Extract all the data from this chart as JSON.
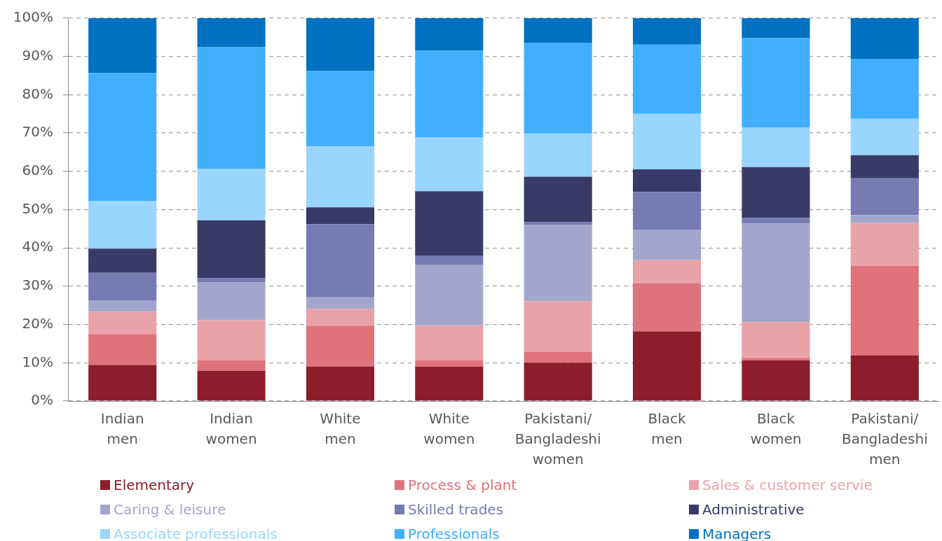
{
  "chart_data": {
    "type": "bar",
    "stacked": true,
    "grid": "y",
    "legend": "bottom",
    "categories": [
      "Indian men",
      "Indian women",
      "White men",
      "White women",
      "Pakistani/Bangladeshi women",
      "Black men",
      "Black women",
      "Pakistani/Bangladeshi men"
    ],
    "ylim": [
      0,
      100
    ],
    "yticks": [
      {
        "value": 0,
        "label": "0%"
      },
      {
        "value": 10,
        "label": "10%"
      },
      {
        "value": 20,
        "label": "20%"
      },
      {
        "value": 30,
        "label": "30%"
      },
      {
        "value": 40,
        "label": "40%"
      },
      {
        "value": 50,
        "label": "50%"
      },
      {
        "value": 60,
        "label": "60%"
      },
      {
        "value": 70,
        "label": "70%"
      },
      {
        "value": 80,
        "label": "80%"
      },
      {
        "value": 90,
        "label": "90%"
      },
      {
        "value": 100,
        "label": "100%"
      }
    ],
    "series": [
      {
        "name": "Elementary",
        "color": "#8b1e2a",
        "values": [
          9.4,
          7.9,
          9.0,
          9.0,
          10.0,
          18.2,
          10.6,
          11.9
        ]
      },
      {
        "name": "Process & plant",
        "color": "#de737c",
        "values": [
          8.1,
          2.7,
          10.7,
          1.6,
          2.8,
          12.6,
          0.7,
          23.4
        ]
      },
      {
        "name": "Sales & customer servie",
        "color": "#e8a3a8",
        "values": [
          5.8,
          10.5,
          4.4,
          9.1,
          13.3,
          6.0,
          9.3,
          11.2
        ]
      },
      {
        "name": "Caring & leisure",
        "color": "#a3a6cc",
        "values": [
          2.9,
          10.0,
          3.0,
          15.8,
          19.9,
          8.0,
          25.8,
          2.1
        ]
      },
      {
        "name": "Skilled trades",
        "color": "#767bb3",
        "values": [
          7.3,
          1.0,
          19.1,
          2.4,
          0.7,
          9.8,
          1.4,
          9.6
        ]
      },
      {
        "name": "Administrative",
        "color": "#383b68",
        "values": [
          6.3,
          15.1,
          4.4,
          16.9,
          11.9,
          5.9,
          13.3,
          6.0
        ]
      },
      {
        "name": "Associate professionals",
        "color": "#9ad5fd",
        "values": [
          12.4,
          13.5,
          15.9,
          14.1,
          11.3,
          14.5,
          10.4,
          9.5
        ]
      },
      {
        "name": "Professionals",
        "color": "#41affe",
        "values": [
          33.5,
          31.7,
          19.7,
          22.6,
          23.7,
          18.1,
          23.3,
          15.7
        ]
      },
      {
        "name": "Managers",
        "color": "#0070c0",
        "values": [
          14.3,
          7.6,
          13.8,
          8.5,
          6.4,
          6.9,
          5.2,
          10.6
        ]
      }
    ]
  }
}
